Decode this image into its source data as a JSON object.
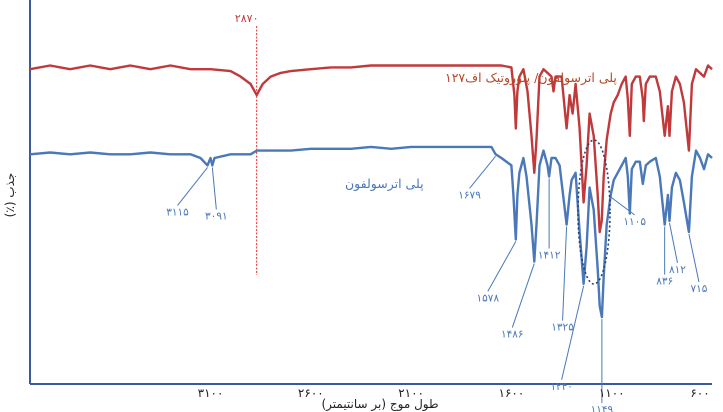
{
  "chart_data": {
    "type": "line",
    "xlabel": "طول موج (بر سانتیمتر)",
    "ylabel": "جذب (٪)",
    "xlim": [
      4000,
      600
    ],
    "ylim": [
      0,
      100
    ],
    "x_ticks": [
      {
        "value": 3100,
        "label": "۳۱۰۰"
      },
      {
        "value": 2600,
        "label": "۲۶۰۰"
      },
      {
        "value": 2100,
        "label": "۲۱۰۰"
      },
      {
        "value": 1600,
        "label": "۱۶۰۰"
      },
      {
        "value": 1100,
        "label": "۱۱۰۰"
      },
      {
        "value": 600,
        "label": "۶۰۰"
      }
    ],
    "colors": {
      "series_red": "#c0393b",
      "series_blue": "#4a78b8",
      "axis": "#3a5aa0",
      "marker_line": "#e03030"
    },
    "series": [
      {
        "name": "پلی اترسولفون/ پلوروتیک اف۱۲۷",
        "color": "#c0393b",
        "points": [
          [
            4000,
            84
          ],
          [
            3900,
            85
          ],
          [
            3800,
            84
          ],
          [
            3700,
            85
          ],
          [
            3600,
            84
          ],
          [
            3500,
            85
          ],
          [
            3400,
            84
          ],
          [
            3300,
            85
          ],
          [
            3200,
            84
          ],
          [
            3100,
            84
          ],
          [
            3000,
            83.5
          ],
          [
            2950,
            82
          ],
          [
            2900,
            80
          ],
          [
            2870,
            77
          ],
          [
            2840,
            80
          ],
          [
            2800,
            82
          ],
          [
            2750,
            83
          ],
          [
            2700,
            83.5
          ],
          [
            2600,
            84
          ],
          [
            2500,
            84.5
          ],
          [
            2400,
            84.5
          ],
          [
            2300,
            85
          ],
          [
            2200,
            85
          ],
          [
            2100,
            85
          ],
          [
            2000,
            85
          ],
          [
            1900,
            85
          ],
          [
            1800,
            85
          ],
          [
            1700,
            85
          ],
          [
            1650,
            85
          ],
          [
            1600,
            84.5
          ],
          [
            1585,
            77
          ],
          [
            1578,
            68
          ],
          [
            1570,
            78
          ],
          [
            1560,
            82
          ],
          [
            1540,
            84
          ],
          [
            1520,
            78
          ],
          [
            1500,
            66
          ],
          [
            1486,
            56
          ],
          [
            1475,
            65
          ],
          [
            1460,
            82
          ],
          [
            1440,
            84
          ],
          [
            1420,
            83
          ],
          [
            1400,
            82
          ],
          [
            1390,
            78
          ],
          [
            1380,
            82
          ],
          [
            1350,
            82
          ],
          [
            1325,
            68
          ],
          [
            1310,
            77
          ],
          [
            1295,
            72
          ],
          [
            1280,
            80
          ],
          [
            1260,
            68
          ],
          [
            1240,
            48
          ],
          [
            1225,
            58
          ],
          [
            1210,
            72
          ],
          [
            1190,
            66
          ],
          [
            1170,
            50
          ],
          [
            1160,
            40
          ],
          [
            1150,
            43
          ],
          [
            1140,
            55
          ],
          [
            1125,
            65
          ],
          [
            1105,
            72
          ],
          [
            1090,
            75
          ],
          [
            1070,
            77
          ],
          [
            1050,
            80
          ],
          [
            1030,
            82
          ],
          [
            1020,
            76
          ],
          [
            1010,
            66
          ],
          [
            1000,
            80
          ],
          [
            980,
            82
          ],
          [
            960,
            82
          ],
          [
            945,
            76
          ],
          [
            940,
            70
          ],
          [
            930,
            80
          ],
          [
            910,
            82
          ],
          [
            880,
            82
          ],
          [
            860,
            78
          ],
          [
            836,
            66
          ],
          [
            820,
            74
          ],
          [
            812,
            66
          ],
          [
            800,
            78
          ],
          [
            780,
            82
          ],
          [
            760,
            80
          ],
          [
            740,
            75
          ],
          [
            715,
            62
          ],
          [
            700,
            80
          ],
          [
            680,
            84
          ],
          [
            660,
            83
          ],
          [
            640,
            82
          ],
          [
            620,
            85
          ],
          [
            600,
            84
          ]
        ]
      },
      {
        "name": "پلی اترسولفون",
        "color": "#4a78b8",
        "points": [
          [
            4000,
            61
          ],
          [
            3900,
            61.5
          ],
          [
            3800,
            61
          ],
          [
            3700,
            61.5
          ],
          [
            3600,
            61
          ],
          [
            3500,
            61
          ],
          [
            3400,
            61.5
          ],
          [
            3300,
            61
          ],
          [
            3200,
            61
          ],
          [
            3150,
            60
          ],
          [
            3115,
            58
          ],
          [
            3100,
            60
          ],
          [
            3091,
            58
          ],
          [
            3080,
            60
          ],
          [
            3000,
            61
          ],
          [
            2900,
            61
          ],
          [
            2870,
            62
          ],
          [
            2800,
            62
          ],
          [
            2700,
            62
          ],
          [
            2600,
            62.5
          ],
          [
            2500,
            62.5
          ],
          [
            2400,
            62.5
          ],
          [
            2300,
            63
          ],
          [
            2200,
            62.5
          ],
          [
            2100,
            63
          ],
          [
            2000,
            63
          ],
          [
            1900,
            63
          ],
          [
            1800,
            63
          ],
          [
            1700,
            63
          ],
          [
            1679,
            61
          ],
          [
            1650,
            60
          ],
          [
            1600,
            58
          ],
          [
            1590,
            50
          ],
          [
            1578,
            38
          ],
          [
            1570,
            50
          ],
          [
            1560,
            56
          ],
          [
            1540,
            60
          ],
          [
            1525,
            55
          ],
          [
            1500,
            42
          ],
          [
            1486,
            32
          ],
          [
            1475,
            42
          ],
          [
            1460,
            58
          ],
          [
            1440,
            62
          ],
          [
            1420,
            58
          ],
          [
            1412,
            55
          ],
          [
            1400,
            60
          ],
          [
            1380,
            60
          ],
          [
            1360,
            58
          ],
          [
            1325,
            42
          ],
          [
            1310,
            50
          ],
          [
            1300,
            54
          ],
          [
            1280,
            56
          ],
          [
            1260,
            40
          ],
          [
            1240,
            26
          ],
          [
            1225,
            36
          ],
          [
            1210,
            52
          ],
          [
            1190,
            46
          ],
          [
            1170,
            30
          ],
          [
            1160,
            20
          ],
          [
            1149,
            17
          ],
          [
            1140,
            28
          ],
          [
            1125,
            42
          ],
          [
            1105,
            50
          ],
          [
            1090,
            54
          ],
          [
            1070,
            56
          ],
          [
            1050,
            58
          ],
          [
            1030,
            60
          ],
          [
            1020,
            55
          ],
          [
            1010,
            45
          ],
          [
            1000,
            57
          ],
          [
            980,
            59
          ],
          [
            960,
            59
          ],
          [
            945,
            53
          ],
          [
            930,
            58
          ],
          [
            910,
            59
          ],
          [
            880,
            60
          ],
          [
            860,
            55
          ],
          [
            836,
            42
          ],
          [
            820,
            50
          ],
          [
            812,
            43
          ],
          [
            800,
            52
          ],
          [
            780,
            56
          ],
          [
            760,
            54
          ],
          [
            740,
            48
          ],
          [
            715,
            40
          ],
          [
            700,
            55
          ],
          [
            680,
            62
          ],
          [
            660,
            60
          ],
          [
            640,
            57
          ],
          [
            620,
            61
          ],
          [
            600,
            60
          ]
        ]
      }
    ],
    "annotations": {
      "red": [
        {
          "x": 2870,
          "label": "۲۸۷۰"
        }
      ],
      "blue": [
        {
          "x": 3115,
          "label": "۳۱۱۵"
        },
        {
          "x": 3091,
          "label": "۳۰۹۱"
        },
        {
          "x": 1679,
          "label": "۱۶۷۹"
        },
        {
          "x": 1578,
          "label": "۱۵۷۸"
        },
        {
          "x": 1486,
          "label": "۱۴۸۶"
        },
        {
          "x": 1412,
          "label": "۱۴۱۲"
        },
        {
          "x": 1325,
          "label": "۱۳۲۵"
        },
        {
          "x": 1240,
          "label": "۱۲۴۰"
        },
        {
          "x": 1149,
          "label": "۱۱۴۹"
        },
        {
          "x": 1105,
          "label": "۱۱۰۵"
        },
        {
          "x": 836,
          "label": "۸۳۶"
        },
        {
          "x": 812,
          "label": "۸۱۲"
        },
        {
          "x": 715,
          "label": "۷۱۵"
        }
      ]
    }
  }
}
